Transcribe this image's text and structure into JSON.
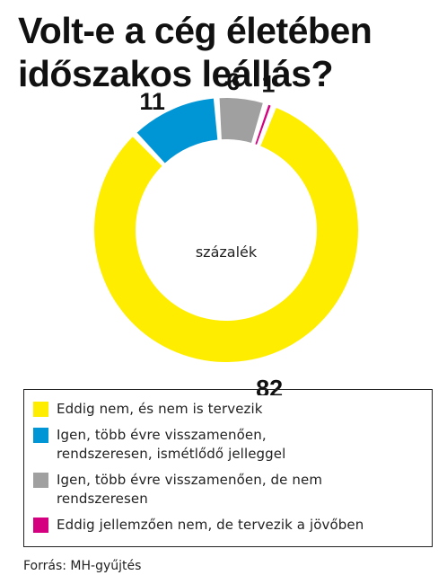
{
  "title": {
    "line1": "Volt-e a cég életében",
    "line2": "időszakos leállás?"
  },
  "chart_data": {
    "type": "pie",
    "variant": "donut",
    "center_label": "százalék",
    "slices": [
      {
        "label": "Eddig nem, és nem is tervezik",
        "value": 82,
        "color": "#FFED00"
      },
      {
        "label": "Igen, több évre visszamenően, rendszeresen, ismétlődő jelleggel",
        "value": 11,
        "color": "#0096D6"
      },
      {
        "label": "Igen, több évre visszamenően, de nem rendszeresen",
        "value": 6,
        "color": "#A0A0A0"
      },
      {
        "label": "Eddig jellemzően nem, de tervezik a jövőben",
        "value": 1,
        "color": "#D4007F"
      }
    ]
  },
  "legend": [
    {
      "lines": [
        "Eddig nem, és nem is tervezik"
      ]
    },
    {
      "lines": [
        "Igen, több évre visszamenően,",
        "rendszeresen, ismétlődő jelleggel"
      ]
    },
    {
      "lines": [
        "Igen, több évre visszamenően, de nem",
        "rendszeresen"
      ]
    },
    {
      "lines": [
        "Eddig jellemzően nem, de tervezik a jövőben"
      ]
    }
  ],
  "source": "Forrás: MH-gyűjtés"
}
